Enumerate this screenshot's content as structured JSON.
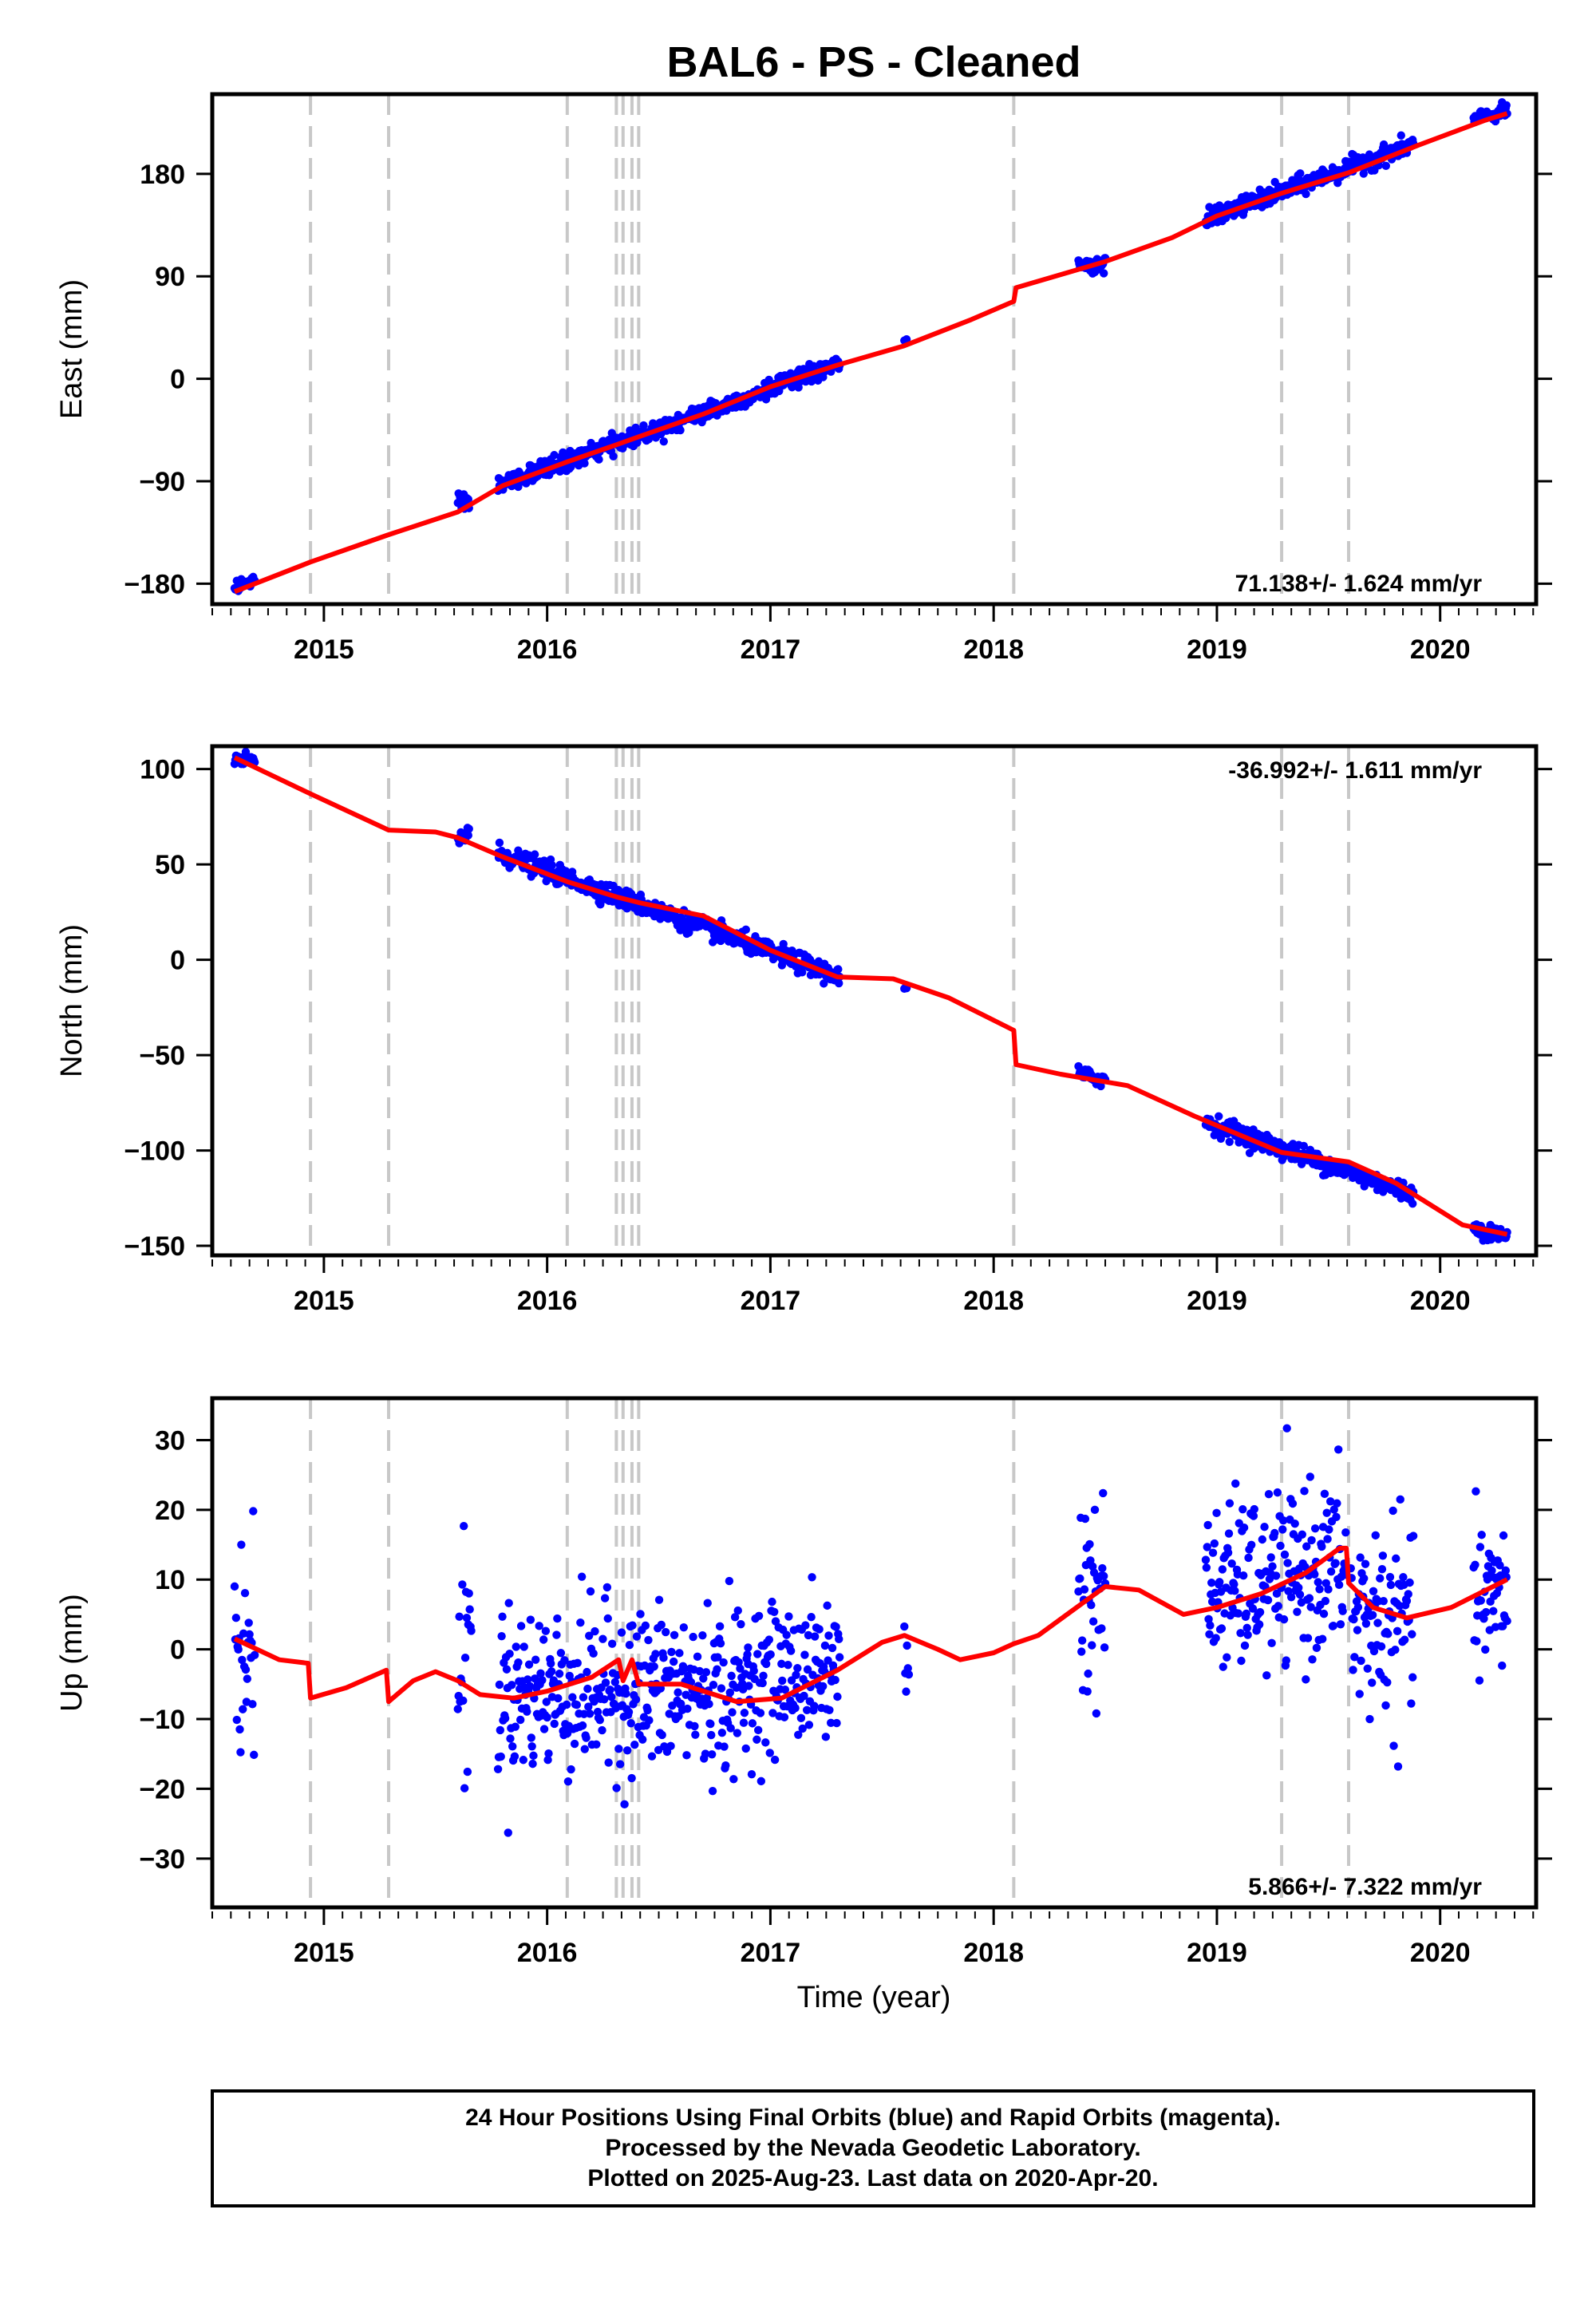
{
  "title": "BAL6  - PS - Cleaned",
  "xlabel": "Time (year)",
  "caption": [
    "24 Hour Positions Using Final Orbits (blue) and Rapid Orbits (magenta).",
    "Processed by the Nevada Geodetic Laboratory.",
    "Plotted on 2025-Aug-23. Last data on 2020-Apr-20."
  ],
  "colors": {
    "points": "#0000ff",
    "model": "#ff0000",
    "steps": "#c8c8c8",
    "frame": "#000000"
  },
  "chart_data": [
    {
      "type": "scatter",
      "ylabel": "East (mm)",
      "rate": "71.138+/- 1.624 mm/yr",
      "xlim": [
        2014.5,
        2020.43
      ],
      "ylim": [
        -198,
        250
      ],
      "xticks": [
        2015,
        2016,
        2017,
        2018,
        2019,
        2020
      ],
      "yticks": [
        -180,
        -90,
        0,
        90,
        180
      ],
      "step_lines": [
        2014.94,
        2015.29,
        2016.09,
        2016.31,
        2016.34,
        2016.38,
        2016.41,
        2018.09,
        2019.29,
        2019.59
      ],
      "model": [
        [
          2014.6,
          -187
        ],
        [
          2014.94,
          -161
        ],
        [
          2015.29,
          -137
        ],
        [
          2015.6,
          -117
        ],
        [
          2015.8,
          -94
        ],
        [
          2016.09,
          -73
        ],
        [
          2016.31,
          -58
        ],
        [
          2016.41,
          -51
        ],
        [
          2016.7,
          -31
        ],
        [
          2017.0,
          -7
        ],
        [
          2017.3,
          12
        ],
        [
          2017.6,
          29
        ],
        [
          2017.9,
          52
        ],
        [
          2018.09,
          68
        ],
        [
          2018.1,
          80
        ],
        [
          2018.5,
          103
        ],
        [
          2018.8,
          124
        ],
        [
          2019.0,
          143
        ],
        [
          2019.29,
          163
        ],
        [
          2019.59,
          181
        ],
        [
          2019.9,
          205
        ],
        [
          2020.2,
          227
        ],
        [
          2020.3,
          233
        ]
      ],
      "segments": [
        {
          "x0": 2014.6,
          "x1": 2014.69,
          "y0": -183,
          "y1": -177,
          "sd": 3
        },
        {
          "x0": 2015.6,
          "x1": 2015.65,
          "y0": -113,
          "y1": -108,
          "sd": 4
        },
        {
          "x0": 2015.78,
          "x1": 2017.31,
          "y0": -94,
          "y1": 13,
          "sd": 4
        },
        {
          "x0": 2017.6,
          "x1": 2017.61,
          "y0": 35,
          "y1": 35,
          "sd": 1
        },
        {
          "x0": 2018.38,
          "x1": 2018.5,
          "y0": 98,
          "y1": 101,
          "sd": 3
        },
        {
          "x0": 2018.95,
          "x1": 2019.88,
          "y0": 140,
          "y1": 206,
          "sd": 4
        },
        {
          "x0": 2020.15,
          "x1": 2020.3,
          "y0": 228,
          "y1": 235,
          "sd": 3
        }
      ]
    },
    {
      "type": "scatter",
      "ylabel": "North (mm)",
      "rate": "-36.992+/- 1.611 mm/yr",
      "xlim": [
        2014.5,
        2020.43
      ],
      "ylim": [
        -155,
        112
      ],
      "xticks": [
        2015,
        2016,
        2017,
        2018,
        2019,
        2020
      ],
      "yticks": [
        -150,
        -100,
        -50,
        0,
        50,
        100
      ],
      "step_lines": [
        2014.94,
        2015.29,
        2016.09,
        2016.31,
        2016.34,
        2016.38,
        2016.41,
        2018.09,
        2019.29,
        2019.59
      ],
      "model": [
        [
          2014.6,
          106
        ],
        [
          2014.94,
          87
        ],
        [
          2015.29,
          68
        ],
        [
          2015.5,
          67
        ],
        [
          2015.6,
          64
        ],
        [
          2015.8,
          54
        ],
        [
          2016.09,
          41
        ],
        [
          2016.31,
          33
        ],
        [
          2016.41,
          30
        ],
        [
          2016.7,
          23
        ],
        [
          2017.0,
          5
        ],
        [
          2017.3,
          -9
        ],
        [
          2017.55,
          -10
        ],
        [
          2017.8,
          -20
        ],
        [
          2018.09,
          -37
        ],
        [
          2018.1,
          -55
        ],
        [
          2018.3,
          -60
        ],
        [
          2018.6,
          -66
        ],
        [
          2018.9,
          -82
        ],
        [
          2019.29,
          -101
        ],
        [
          2019.59,
          -106
        ],
        [
          2019.8,
          -117
        ],
        [
          2020.1,
          -139
        ],
        [
          2020.3,
          -144
        ]
      ],
      "segments": [
        {
          "x0": 2014.6,
          "x1": 2014.69,
          "y0": 105,
          "y1": 103,
          "sd": 2
        },
        {
          "x0": 2015.6,
          "x1": 2015.65,
          "y0": 65,
          "y1": 66,
          "sd": 3
        },
        {
          "x0": 2015.78,
          "x1": 2017.31,
          "y0": 56,
          "y1": -9,
          "sd": 2.5
        },
        {
          "x0": 2017.6,
          "x1": 2017.61,
          "y0": -15,
          "y1": -15,
          "sd": 1
        },
        {
          "x0": 2018.38,
          "x1": 2018.5,
          "y0": -60,
          "y1": -63,
          "sd": 2
        },
        {
          "x0": 2018.95,
          "x1": 2019.88,
          "y0": -85,
          "y1": -123,
          "sd": 2.5
        },
        {
          "x0": 2020.15,
          "x1": 2020.3,
          "y0": -141,
          "y1": -145,
          "sd": 2
        }
      ]
    },
    {
      "type": "scatter",
      "ylabel": "Up (mm)",
      "rate": "5.866+/- 7.322 mm/yr",
      "xlim": [
        2014.5,
        2020.43
      ],
      "ylim": [
        -37,
        36
      ],
      "xticks": [
        2015,
        2016,
        2017,
        2018,
        2019,
        2020
      ],
      "yticks": [
        -30,
        -20,
        -10,
        0,
        10,
        20,
        30
      ],
      "step_lines": [
        2014.94,
        2015.29,
        2016.09,
        2016.31,
        2016.34,
        2016.38,
        2016.41,
        2018.09,
        2019.29,
        2019.59
      ],
      "model": [
        [
          2014.6,
          1.5
        ],
        [
          2014.7,
          0
        ],
        [
          2014.8,
          -1.5
        ],
        [
          2014.93,
          -2
        ],
        [
          2014.94,
          -7
        ],
        [
          2015.1,
          -5.5
        ],
        [
          2015.28,
          -3
        ],
        [
          2015.29,
          -7.5
        ],
        [
          2015.4,
          -4.5
        ],
        [
          2015.5,
          -3.2
        ],
        [
          2015.6,
          -4.5
        ],
        [
          2015.7,
          -6.5
        ],
        [
          2015.85,
          -7
        ],
        [
          2016.0,
          -6
        ],
        [
          2016.2,
          -4
        ],
        [
          2016.32,
          -1.5
        ],
        [
          2016.34,
          -4.5
        ],
        [
          2016.36,
          -3
        ],
        [
          2016.38,
          -1.5
        ],
        [
          2016.41,
          -5
        ],
        [
          2016.6,
          -5
        ],
        [
          2016.85,
          -7.5
        ],
        [
          2017.05,
          -7
        ],
        [
          2017.3,
          -3
        ],
        [
          2017.5,
          1
        ],
        [
          2017.6,
          2
        ],
        [
          2017.75,
          0
        ],
        [
          2017.85,
          -1.5
        ],
        [
          2018.0,
          -0.5
        ],
        [
          2018.09,
          0.8
        ],
        [
          2018.2,
          2
        ],
        [
          2018.35,
          5.5
        ],
        [
          2018.5,
          9
        ],
        [
          2018.65,
          8.5
        ],
        [
          2018.85,
          5
        ],
        [
          2019.0,
          6
        ],
        [
          2019.2,
          8
        ],
        [
          2019.4,
          11
        ],
        [
          2019.55,
          14.5
        ],
        [
          2019.58,
          14.5
        ],
        [
          2019.59,
          9.5
        ],
        [
          2019.7,
          6
        ],
        [
          2019.85,
          4.5
        ],
        [
          2020.05,
          6
        ],
        [
          2020.3,
          10
        ]
      ],
      "segments": [
        {
          "x0": 2014.6,
          "x1": 2014.69,
          "y0": 0,
          "y1": 0,
          "sd": 7
        },
        {
          "x0": 2015.6,
          "x1": 2015.66,
          "y0": -2,
          "y1": -2,
          "sd": 11
        },
        {
          "x0": 2015.78,
          "x1": 2016.9,
          "y0": -6,
          "y1": -6,
          "sd": 6
        },
        {
          "x0": 2016.9,
          "x1": 2017.31,
          "y0": -4,
          "y1": -3,
          "sd": 5
        },
        {
          "x0": 2017.6,
          "x1": 2017.62,
          "y0": 0,
          "y1": 0,
          "sd": 6
        },
        {
          "x0": 2018.38,
          "x1": 2018.5,
          "y0": 8,
          "y1": 8,
          "sd": 7
        },
        {
          "x0": 2018.95,
          "x1": 2019.58,
          "y0": 8,
          "y1": 12,
          "sd": 6
        },
        {
          "x0": 2019.6,
          "x1": 2019.88,
          "y0": 4,
          "y1": 4,
          "sd": 7
        },
        {
          "x0": 2020.15,
          "x1": 2020.3,
          "y0": 6,
          "y1": 8,
          "sd": 5
        }
      ]
    }
  ]
}
